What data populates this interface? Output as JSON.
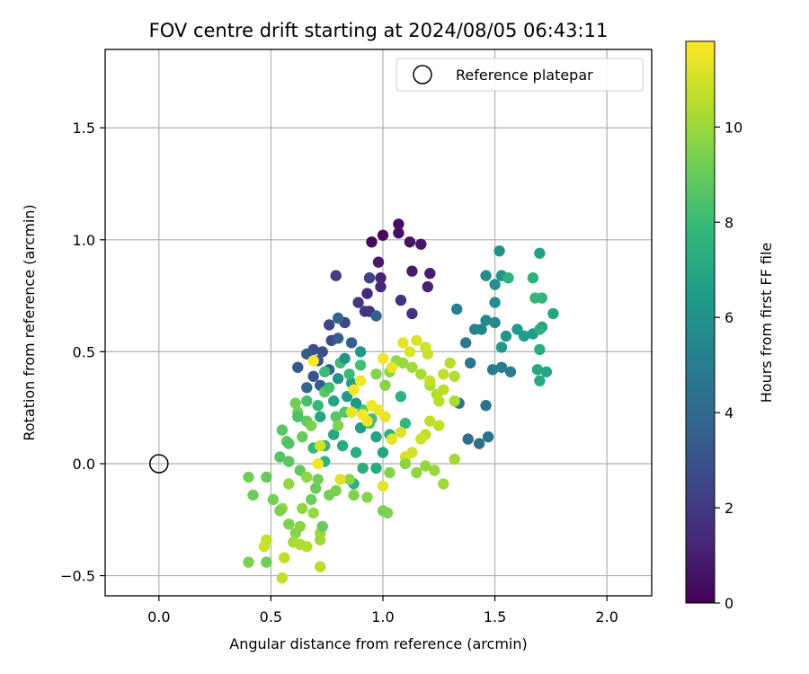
{
  "chart_data": {
    "type": "scatter",
    "title": "FOV centre drift starting at 2024/08/05 06:43:11",
    "xlabel": "Angular distance from reference (arcmin)",
    "ylabel": "Rotation from reference (arcmin)",
    "xlim": [
      -0.24,
      2.2
    ],
    "ylim": [
      -0.59,
      1.85
    ],
    "xticks": [
      0.0,
      0.5,
      1.0,
      1.5,
      2.0
    ],
    "xtick_labels": [
      "0.0",
      "0.5",
      "1.0",
      "1.5",
      "2.0"
    ],
    "yticks": [
      -0.5,
      0.0,
      0.5,
      1.0,
      1.5
    ],
    "ytick_labels": [
      "−0.5",
      "0.0",
      "0.5",
      "1.0",
      "1.5"
    ],
    "grid": true,
    "legend": {
      "position": "top-right",
      "entries": [
        "Reference platepar"
      ]
    },
    "reference_point": {
      "x": 0.0,
      "y": 0.0,
      "label": "Reference platepar",
      "marker": "open-circle"
    },
    "colorbar": {
      "label": "Hours from first FF file",
      "colormap": "viridis",
      "range": [
        0,
        11.8
      ],
      "ticks": [
        0,
        2,
        4,
        6,
        8,
        10
      ],
      "tick_labels": [
        "0",
        "2",
        "4",
        "6",
        "8",
        "10"
      ]
    },
    "series": [
      {
        "values_format": "[x, y, hours]",
        "points": [
          [
            0.95,
            0.99,
            0.2
          ],
          [
            1.0,
            1.02,
            0.3
          ],
          [
            1.07,
            1.07,
            0.4
          ],
          [
            1.07,
            1.03,
            0.5
          ],
          [
            1.12,
            0.99,
            0.6
          ],
          [
            1.17,
            0.98,
            0.7
          ],
          [
            0.98,
            0.9,
            0.8
          ],
          [
            1.13,
            0.86,
            0.9
          ],
          [
            1.21,
            0.85,
            1.0
          ],
          [
            1.2,
            0.79,
            1.1
          ],
          [
            0.99,
            0.83,
            1.2
          ],
          [
            0.99,
            0.79,
            1.3
          ],
          [
            0.93,
            0.76,
            1.4
          ],
          [
            0.94,
            0.68,
            1.5
          ],
          [
            1.08,
            0.73,
            1.6
          ],
          [
            1.13,
            0.67,
            1.7
          ],
          [
            0.92,
            0.68,
            1.8
          ],
          [
            0.89,
            0.72,
            1.9
          ],
          [
            0.79,
            0.84,
            2.2
          ],
          [
            0.94,
            0.83,
            2.4
          ],
          [
            0.83,
            0.63,
            2.5
          ],
          [
            0.76,
            0.62,
            2.6
          ],
          [
            0.77,
            0.55,
            2.7
          ],
          [
            0.69,
            0.51,
            2.8
          ],
          [
            0.73,
            0.5,
            2.9
          ],
          [
            0.71,
            0.46,
            3.0
          ],
          [
            0.69,
            0.39,
            3.1
          ],
          [
            0.62,
            0.43,
            3.2
          ],
          [
            0.66,
            0.49,
            3.3
          ],
          [
            0.72,
            0.35,
            3.4
          ],
          [
            0.8,
            0.56,
            3.5
          ],
          [
            0.86,
            0.54,
            3.6
          ],
          [
            0.97,
            0.66,
            3.7
          ],
          [
            0.8,
            0.65,
            3.8
          ],
          [
            0.76,
            0.42,
            3.9
          ],
          [
            0.66,
            0.34,
            4.0
          ],
          [
            1.38,
            0.11,
            4.2
          ],
          [
            1.43,
            0.09,
            4.3
          ],
          [
            1.47,
            0.12,
            4.4
          ],
          [
            1.46,
            0.26,
            4.5
          ],
          [
            1.34,
            0.27,
            4.6
          ],
          [
            1.39,
            0.45,
            4.7
          ],
          [
            1.37,
            0.54,
            4.8
          ],
          [
            1.49,
            0.42,
            4.9
          ],
          [
            1.53,
            0.43,
            5.0
          ],
          [
            1.57,
            0.41,
            5.1
          ],
          [
            1.33,
            0.69,
            5.2
          ],
          [
            1.41,
            0.6,
            5.3
          ],
          [
            1.44,
            0.6,
            5.4
          ],
          [
            1.46,
            0.64,
            5.5
          ],
          [
            1.5,
            0.63,
            5.6
          ],
          [
            1.5,
            0.72,
            5.7
          ],
          [
            1.46,
            0.84,
            5.8
          ],
          [
            1.5,
            0.8,
            5.9
          ],
          [
            1.53,
            0.84,
            6.0
          ],
          [
            1.52,
            0.95,
            6.1
          ],
          [
            1.55,
            0.57,
            6.2
          ],
          [
            1.53,
            0.52,
            6.3
          ],
          [
            1.6,
            0.6,
            6.4
          ],
          [
            1.63,
            0.57,
            6.5
          ],
          [
            1.67,
            0.58,
            6.6
          ],
          [
            1.71,
            0.61,
            6.7
          ],
          [
            1.7,
            0.94,
            6.8
          ],
          [
            1.76,
            0.67,
            6.9
          ],
          [
            1.73,
            0.41,
            7.0
          ],
          [
            1.69,
            0.42,
            7.1
          ],
          [
            1.7,
            0.37,
            7.2
          ],
          [
            1.7,
            0.51,
            7.3
          ],
          [
            1.7,
            0.6,
            7.4
          ],
          [
            1.56,
            0.83,
            7.5
          ],
          [
            1.67,
            0.83,
            7.6
          ],
          [
            1.71,
            0.74,
            7.7
          ],
          [
            1.68,
            0.74,
            7.8
          ],
          [
            0.84,
            0.3,
            6.5
          ],
          [
            0.86,
            0.36,
            6.7
          ],
          [
            0.78,
            0.28,
            6.9
          ],
          [
            0.72,
            0.21,
            7.0
          ],
          [
            0.78,
            0.13,
            7.1
          ],
          [
            0.82,
            0.08,
            7.2
          ],
          [
            0.88,
            0.05,
            7.3
          ],
          [
            0.91,
            -0.02,
            7.4
          ],
          [
            0.87,
            -0.09,
            7.5
          ],
          [
            0.74,
            0.01,
            7.6
          ],
          [
            0.74,
            0.08,
            7.7
          ],
          [
            0.69,
            0.07,
            7.8
          ],
          [
            0.71,
            0.26,
            7.9
          ],
          [
            0.74,
            0.41,
            8.0
          ],
          [
            0.81,
            0.45,
            8.1
          ],
          [
            0.9,
            0.44,
            8.2
          ],
          [
            0.95,
            0.2,
            8.3
          ],
          [
            0.94,
            0.18,
            8.4
          ],
          [
            0.91,
            0.24,
            8.5
          ],
          [
            0.83,
            0.23,
            8.6
          ],
          [
            0.79,
            0.21,
            8.7
          ],
          [
            0.74,
            0.32,
            8.8
          ],
          [
            0.66,
            0.19,
            8.9
          ],
          [
            0.64,
            0.12,
            9.0
          ],
          [
            0.57,
            0.1,
            9.1
          ],
          [
            0.61,
            0.27,
            9.2
          ],
          [
            0.62,
            0.23,
            9.3
          ],
          [
            0.68,
            0.17,
            9.4
          ],
          [
            0.8,
            0.17,
            9.5
          ],
          [
            0.8,
            0.38,
            6.0
          ],
          [
            0.83,
            0.47,
            6.1
          ],
          [
            0.9,
            0.5,
            6.3
          ],
          [
            0.88,
            0.27,
            6.4
          ],
          [
            0.9,
            0.16,
            6.6
          ],
          [
            0.97,
            0.12,
            6.8
          ],
          [
            1.0,
            0.05,
            7.0
          ],
          [
            0.97,
            -0.02,
            7.2
          ],
          [
            1.03,
            0.13,
            7.4
          ],
          [
            1.08,
            0.3,
            7.6
          ],
          [
            1.1,
            0.18,
            7.8
          ],
          [
            0.85,
            0.4,
            8.0
          ],
          [
            0.76,
            0.34,
            8.2
          ],
          [
            0.66,
            0.28,
            8.3
          ],
          [
            0.62,
            0.21,
            8.4
          ],
          [
            0.58,
            0.09,
            8.5
          ],
          [
            0.54,
            0.03,
            8.6
          ],
          [
            0.55,
            0.15,
            8.7
          ],
          [
            0.58,
            0.01,
            8.8
          ],
          [
            0.63,
            -0.03,
            8.9
          ],
          [
            0.7,
            -0.11,
            9.0
          ],
          [
            0.68,
            -0.16,
            9.1
          ],
          [
            0.71,
            -0.07,
            9.2
          ],
          [
            0.76,
            -0.14,
            9.3
          ],
          [
            0.79,
            -0.12,
            9.4
          ],
          [
            0.87,
            -0.14,
            9.5
          ],
          [
            0.93,
            -0.15,
            9.6
          ],
          [
            0.85,
            -0.07,
            9.7
          ],
          [
            0.66,
            -0.06,
            9.8
          ],
          [
            0.58,
            -0.09,
            9.9
          ],
          [
            0.55,
            -0.2,
            10.0
          ],
          [
            0.48,
            -0.06,
            9.0
          ],
          [
            0.42,
            -0.14,
            9.1
          ],
          [
            0.4,
            -0.06,
            9.2
          ],
          [
            0.51,
            -0.16,
            9.3
          ],
          [
            0.54,
            -0.21,
            9.4
          ],
          [
            0.58,
            -0.27,
            9.5
          ],
          [
            0.61,
            -0.31,
            9.6
          ],
          [
            0.63,
            -0.28,
            9.7
          ],
          [
            0.64,
            -0.2,
            9.8
          ],
          [
            0.69,
            -0.22,
            9.9
          ],
          [
            0.72,
            -0.31,
            10.0
          ],
          [
            0.72,
            -0.34,
            10.1
          ],
          [
            0.6,
            -0.35,
            10.2
          ],
          [
            0.63,
            -0.36,
            10.3
          ],
          [
            0.66,
            -0.37,
            10.4
          ],
          [
            0.72,
            -0.46,
            10.5
          ],
          [
            0.56,
            -0.42,
            10.6
          ],
          [
            0.55,
            -0.51,
            10.7
          ],
          [
            0.48,
            -0.34,
            10.8
          ],
          [
            0.47,
            -0.37,
            10.9
          ],
          [
            0.4,
            -0.44,
            9.4
          ],
          [
            0.48,
            -0.44,
            9.2
          ],
          [
            0.73,
            -0.28,
            9.0
          ],
          [
            0.97,
            0.4,
            9.6
          ],
          [
            1.01,
            0.35,
            9.7
          ],
          [
            1.03,
            0.41,
            9.8
          ],
          [
            1.06,
            0.46,
            9.9
          ],
          [
            1.09,
            0.45,
            10.0
          ],
          [
            1.13,
            0.43,
            10.1
          ],
          [
            1.17,
            0.4,
            10.2
          ],
          [
            1.21,
            0.35,
            10.3
          ],
          [
            1.24,
            0.31,
            10.4
          ],
          [
            1.25,
            0.28,
            10.5
          ],
          [
            1.25,
            0.17,
            10.6
          ],
          [
            1.21,
            0.19,
            10.7
          ],
          [
            1.19,
            0.13,
            10.8
          ],
          [
            1.17,
            0.11,
            10.9
          ],
          [
            1.13,
            0.05,
            11.0
          ],
          [
            1.1,
            0.03,
            11.1
          ],
          [
            1.08,
            0.14,
            11.2
          ],
          [
            1.04,
            0.11,
            11.3
          ],
          [
            1.01,
            0.21,
            11.4
          ],
          [
            0.98,
            0.24,
            11.5
          ],
          [
            0.95,
            0.26,
            11.6
          ],
          [
            0.91,
            0.22,
            11.7
          ],
          [
            0.87,
            0.33,
            11.7
          ],
          [
            0.9,
            0.37,
            11.6
          ],
          [
            1.0,
            0.47,
            11.5
          ],
          [
            1.04,
            0.43,
            11.4
          ],
          [
            1.09,
            0.54,
            11.3
          ],
          [
            1.12,
            0.5,
            11.2
          ],
          [
            1.15,
            0.55,
            11.1
          ],
          [
            1.19,
            0.52,
            11.0
          ],
          [
            1.2,
            0.49,
            10.9
          ],
          [
            1.21,
            0.37,
            10.8
          ],
          [
            1.27,
            0.4,
            10.7
          ],
          [
            1.27,
            0.33,
            10.6
          ],
          [
            1.3,
            0.45,
            10.5
          ],
          [
            1.32,
            0.39,
            10.4
          ],
          [
            1.32,
            0.28,
            10.3
          ],
          [
            1.32,
            0.02,
            10.2
          ],
          [
            1.27,
            -0.09,
            10.1
          ],
          [
            1.23,
            -0.03,
            10.0
          ],
          [
            1.19,
            -0.01,
            9.9
          ],
          [
            1.15,
            -0.04,
            9.8
          ],
          [
            1.1,
            0.0,
            9.7
          ],
          [
            1.03,
            -0.04,
            9.6
          ],
          [
            1.02,
            -0.22,
            9.5
          ],
          [
            1.0,
            -0.21,
            9.4
          ],
          [
            1.0,
            -0.1,
            11.3
          ],
          [
            0.81,
            -0.07,
            11.2
          ],
          [
            0.71,
            0.0,
            11.6
          ],
          [
            0.72,
            0.08,
            11.0
          ],
          [
            0.69,
            0.46,
            11.8
          ],
          [
            0.86,
            0.23,
            11.4
          ],
          [
            0.93,
            0.19,
            11.5
          ]
        ]
      }
    ]
  }
}
